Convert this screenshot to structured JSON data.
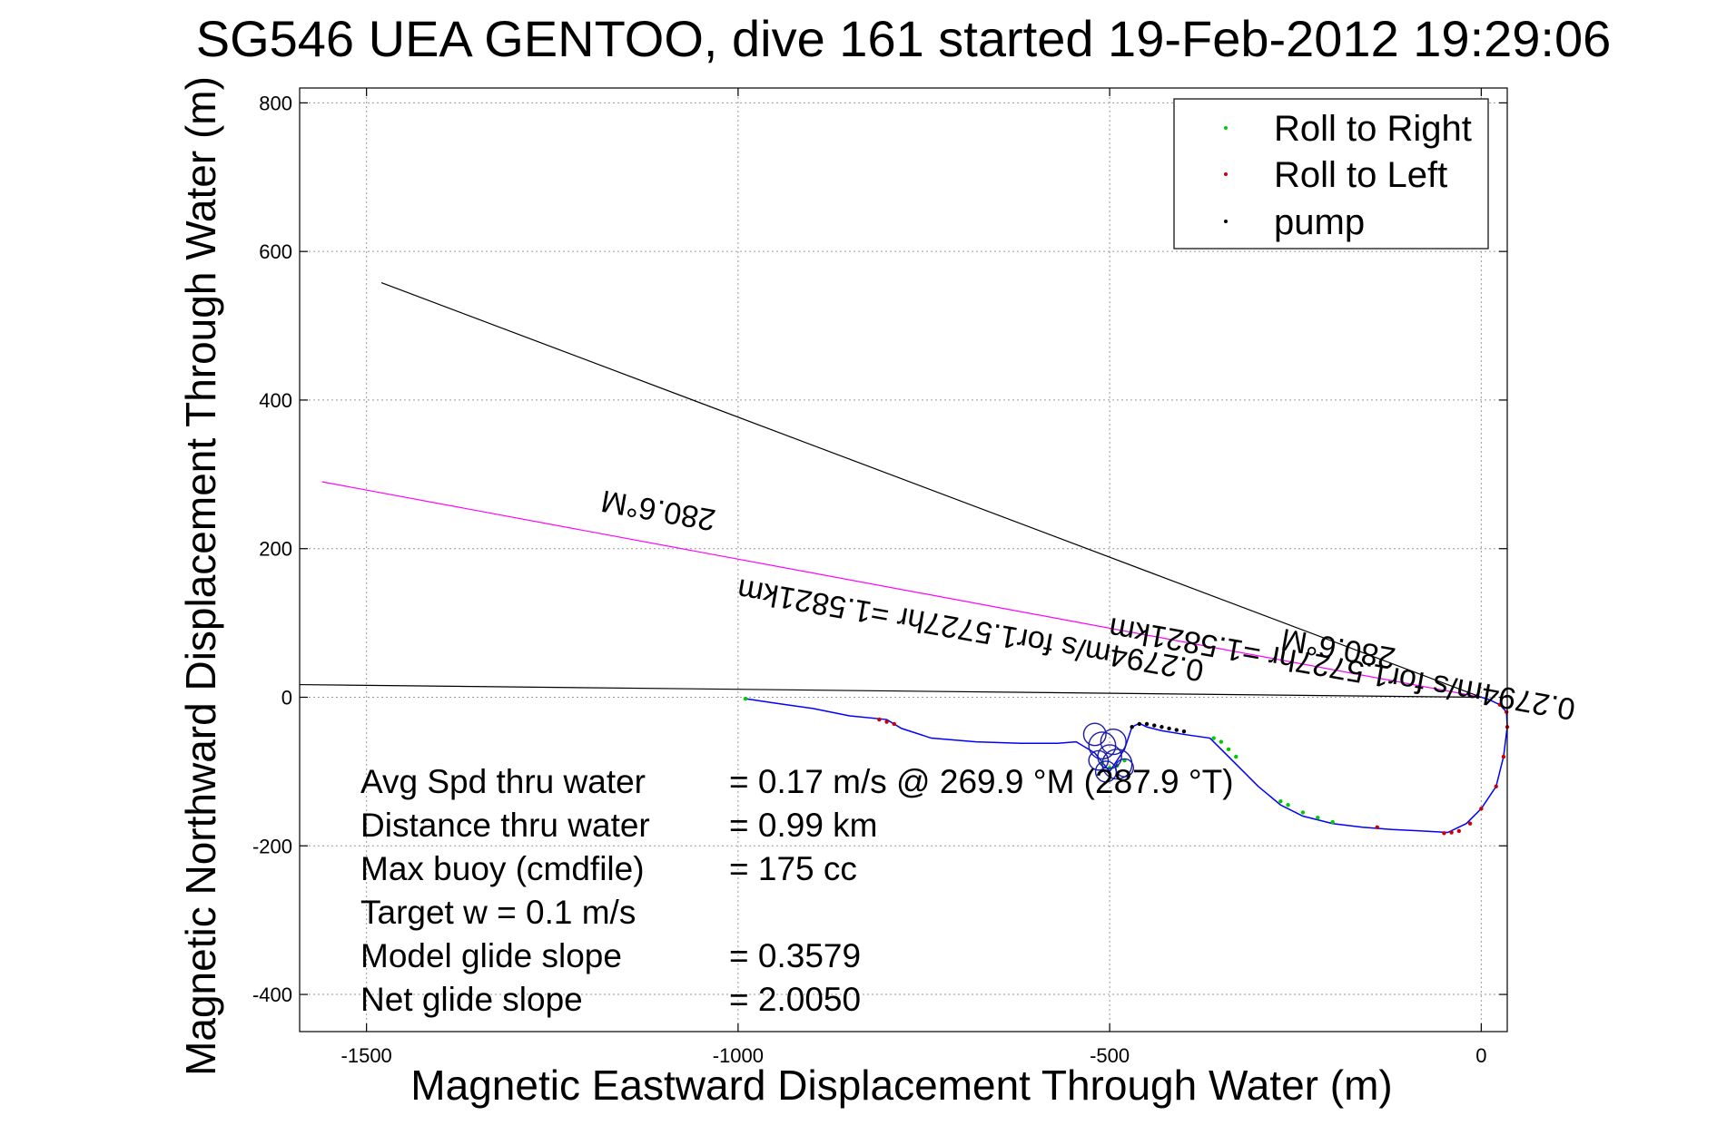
{
  "chart_data": {
    "type": "line",
    "title": "SG546 UEA GENTOO, dive 161 started 19-Feb-2012 19:29:06",
    "xlabel": "Magnetic Eastward Displacement Through Water (m)",
    "ylabel": "Magnetic Northward Displacement Through Water (m)",
    "xlim": [
      -1590,
      35
    ],
    "ylim": [
      -450,
      820
    ],
    "xticks": [
      -1500,
      -1000,
      -500,
      0
    ],
    "yticks": [
      -400,
      -200,
      0,
      200,
      400,
      600,
      800
    ],
    "xtick_labels": [
      "-1500",
      "-1000",
      "-500",
      "0"
    ],
    "ytick_labels": [
      "-400",
      "-200",
      "0",
      "200",
      "400",
      "600",
      "800"
    ],
    "grid": true,
    "legend_position": "top-right",
    "legend": [
      {
        "label": "Roll to Right",
        "color": "#00cc00"
      },
      {
        "label": "Roll to Left",
        "color": "#cc0000"
      },
      {
        "label": "pump",
        "color": "#000000"
      }
    ],
    "series": [
      {
        "name": "track",
        "color": "#0000ff",
        "x": [
          -990,
          -950,
          -900,
          -850,
          -800,
          -780,
          -740,
          -680,
          -620,
          -570,
          -545,
          -520,
          -500,
          -480,
          -470,
          -460,
          -450,
          -430,
          -400,
          -365,
          -330,
          -300,
          -270,
          -240,
          -200,
          -160,
          -120,
          -80,
          -45,
          -20,
          0,
          20,
          30,
          35,
          34,
          25,
          10,
          0
        ],
        "y": [
          -2,
          -8,
          -15,
          -25,
          -30,
          -42,
          -55,
          -60,
          -62,
          -62,
          -60,
          -75,
          -100,
          -70,
          -40,
          -35,
          -40,
          -45,
          -50,
          -55,
          -90,
          -120,
          -145,
          -160,
          -170,
          -175,
          -178,
          -180,
          -182,
          -170,
          -150,
          -120,
          -80,
          -40,
          -20,
          -10,
          -3,
          0
        ]
      },
      {
        "name": "Roll to Right",
        "color": "#00cc00",
        "x": [
          -990,
          -510,
          -500,
          -490,
          -480,
          -360,
          -350,
          -340,
          -330,
          -270,
          -260,
          -240,
          -220,
          -200
        ],
        "y": [
          -2,
          -88,
          -95,
          -92,
          -85,
          -55,
          -60,
          -70,
          -80,
          -140,
          -145,
          -155,
          -162,
          -168
        ]
      },
      {
        "name": "Roll to Left",
        "color": "#cc0000",
        "x": [
          -810,
          -800,
          -790,
          -140,
          -50,
          -40,
          -30,
          -15,
          0,
          20,
          30,
          35,
          34,
          25
        ],
        "y": [
          -30,
          -33,
          -36,
          -175,
          -183,
          -182,
          -180,
          -170,
          -150,
          -120,
          -80,
          -40,
          -20,
          -10
        ]
      },
      {
        "name": "pump",
        "color": "#000000",
        "x": [
          -470,
          -460,
          -450,
          -440,
          -430,
          -420,
          -410,
          -400
        ],
        "y": [
          -40,
          -36,
          -36,
          -38,
          -40,
          -42,
          -44,
          -46
        ]
      }
    ],
    "loops": [
      {
        "cx": -520,
        "cy": -50,
        "r": 15
      },
      {
        "cx": -510,
        "cy": -65,
        "r": 18
      },
      {
        "cx": -500,
        "cy": -80,
        "r": 16
      },
      {
        "cx": -490,
        "cy": -90,
        "r": 20
      },
      {
        "cx": -505,
        "cy": -100,
        "r": 14
      },
      {
        "cx": -480,
        "cy": -95,
        "r": 12
      },
      {
        "cx": -515,
        "cy": -85,
        "r": 13
      },
      {
        "cx": -495,
        "cy": -60,
        "r": 17
      }
    ],
    "reference_lines": [
      {
        "name": "heading-to-waypoint",
        "color": "#000000",
        "x": [
          -1480,
          0
        ],
        "y": [
          558,
          0
        ]
      },
      {
        "name": "current-heading",
        "color": "#ff00ff",
        "x": [
          -1560,
          0
        ],
        "y": [
          290,
          0
        ]
      },
      {
        "name": "eastward-baseline",
        "color": "#000000",
        "x": [
          -1590,
          0
        ],
        "y": [
          17,
          0
        ]
      }
    ],
    "annotations": [
      {
        "text": "280.6°M",
        "x": -1105,
        "y": 265,
        "rotation": 190
      },
      {
        "text": "0.2794m/s for1.5727hr =1.5821km",
        "x": -685,
        "y": 104,
        "rotation": 190
      },
      {
        "text": "280.6°M",
        "x": -190,
        "y": 79,
        "rotation": 190
      },
      {
        "text": "0.2794m/s for1.5727hr =1.5821km",
        "x": -185,
        "y": 52,
        "rotation": 190
      }
    ],
    "stats": [
      {
        "label": "Avg Spd thru water",
        "value": "=  0.17 m/s @ 269.9  °M (287.9  °T)"
      },
      {
        "label": "Distance thru water",
        "value": "=  0.99 km"
      },
      {
        "label": "Max buoy (cmdfile)",
        "value": "= 175 cc"
      },
      {
        "label": "Target w    = 0.1 m/s",
        "value": ""
      },
      {
        "label": "Model glide slope",
        "value": "= 0.3579"
      },
      {
        "label": "Net glide slope",
        "value": "= 2.0050"
      }
    ]
  }
}
